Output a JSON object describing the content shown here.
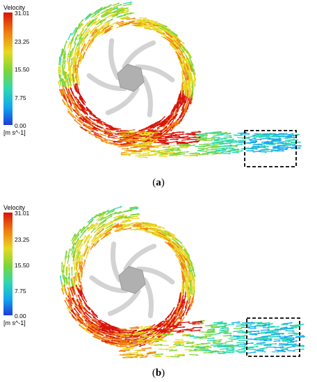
{
  "panels": [
    {
      "id": "a",
      "caption_open": "(",
      "caption_letter": "a",
      "caption_close": ")",
      "legend": {
        "title": "Velocity",
        "ticks": [
          "31.01",
          "23.25",
          "15.50",
          "7.75",
          "0.00"
        ],
        "unit": "[m s^-1]"
      }
    },
    {
      "id": "b",
      "caption_open": "(",
      "caption_letter": "b",
      "caption_close": ")",
      "legend": {
        "title": "Velocity",
        "ticks": [
          "31.01",
          "23.25",
          "15.50",
          "7.75",
          "0.00"
        ],
        "unit": "[m s^-1]"
      }
    }
  ],
  "colors": {
    "max": "#d8140a",
    "high": "#f08010",
    "mid_high": "#e8d820",
    "mid": "#7ad638",
    "mid_low": "#2fd8b0",
    "low": "#10a8f0",
    "min": "#1e3cd8",
    "impeller": "#c8c8c8",
    "highlight_box": "#000000"
  }
}
